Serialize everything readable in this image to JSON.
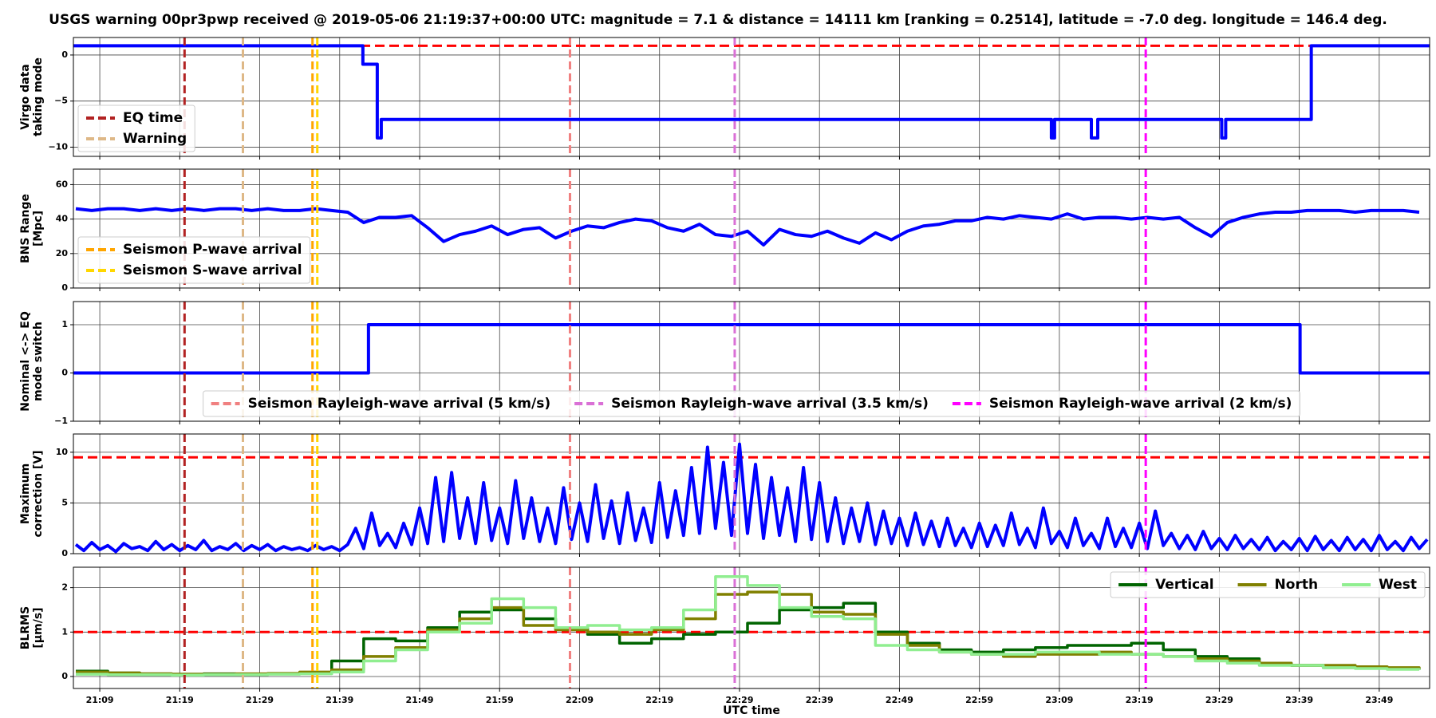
{
  "title": "USGS warning 00pr3pwp received @ 2019-05-06 21:19:37+00:00 UTC: magnitude = 7.1 & distance = 14111 km [ranking = 0.2514], latitude = -7.0 deg. longitude = 146.4 deg.",
  "xlabel": "UTC time",
  "xlim": [
    5.7,
    175.3
  ],
  "xticks": [
    {
      "value": 9,
      "label": "21:09"
    },
    {
      "value": 19,
      "label": "21:19"
    },
    {
      "value": 29,
      "label": "21:29"
    },
    {
      "value": 39,
      "label": "21:39"
    },
    {
      "value": 49,
      "label": "21:49"
    },
    {
      "value": 59,
      "label": "21:59"
    },
    {
      "value": 69,
      "label": "22:09"
    },
    {
      "value": 79,
      "label": "22:19"
    },
    {
      "value": 89,
      "label": "22:29"
    },
    {
      "value": 99,
      "label": "22:39"
    },
    {
      "value": 109,
      "label": "22:49"
    },
    {
      "value": 119,
      "label": "22:59"
    },
    {
      "value": 129,
      "label": "23:09"
    },
    {
      "value": 139,
      "label": "23:19"
    },
    {
      "value": 149,
      "label": "23:29"
    },
    {
      "value": 159,
      "label": "23:39"
    },
    {
      "value": 169,
      "label": "23:49"
    }
  ],
  "events": [
    {
      "name": "EQ time",
      "color": "#b22222",
      "x": 19.6
    },
    {
      "name": "Warning",
      "color": "#deb887",
      "x": 26.9
    },
    {
      "name": "Seismon P-wave arrival",
      "color": "#ffa500",
      "x": 35.6
    },
    {
      "name": "Seismon S-wave arrival",
      "color": "#ffd700",
      "x": 36.2
    },
    {
      "name": "Seismon Rayleigh-wave arrival (5 km/s)",
      "color": "#f08080",
      "x": 67.8
    },
    {
      "name": "Seismon Rayleigh-wave arrival (3.5 km/s)",
      "color": "#da70d6",
      "x": 88.4
    },
    {
      "name": "Seismon Rayleigh-wave arrival (2 km/s)",
      "color": "#ff00ff",
      "x": 139.8
    }
  ],
  "chart_data": [
    {
      "type": "line",
      "ylabel": [
        "Virgo data",
        "taking mode"
      ],
      "ylim": [
        -11,
        1.9
      ],
      "yticks": [
        {
          "value": -10,
          "label": "−10"
        },
        {
          "value": -5,
          "label": "−5"
        },
        0
      ],
      "grid": true,
      "legend": "lower left",
      "threshold": {
        "value": 1,
        "color": "#ff0000"
      },
      "x": [
        5.7,
        41.9,
        41.9,
        43.7,
        43.7,
        44.2,
        44.2,
        128,
        128,
        128.4,
        128.4,
        133,
        133,
        133.8,
        133.8,
        149.3,
        149.3,
        149.8,
        149.8,
        160.5,
        160.5,
        175.3
      ],
      "series": [
        {
          "color": "#0000ff",
          "values": [
            1,
            1,
            -1,
            -1,
            -9,
            -9,
            -7,
            -7,
            -9,
            -9,
            -7,
            -7,
            -9,
            -9,
            -7,
            -7,
            -9,
            -9,
            -7,
            -7,
            1,
            1
          ]
        }
      ]
    },
    {
      "type": "line",
      "ylabel": [
        "BNS Range",
        "[Mpc]"
      ],
      "ylim": [
        0,
        69
      ],
      "yticks": [
        0,
        20,
        40,
        60
      ],
      "grid": true,
      "legend": "lower left",
      "x": [
        6,
        8,
        10,
        12,
        14,
        16,
        18,
        20,
        22,
        24,
        26,
        28,
        30,
        32,
        34,
        36,
        38,
        40,
        42,
        44,
        46,
        48,
        50,
        52,
        54,
        56,
        58,
        60,
        62,
        64,
        66,
        68,
        70,
        72,
        74,
        76,
        78,
        80,
        82,
        84,
        86,
        88,
        90,
        92,
        94,
        96,
        98,
        100,
        102,
        104,
        106,
        108,
        110,
        112,
        114,
        116,
        118,
        120,
        122,
        124,
        126,
        128,
        130,
        132,
        134,
        136,
        138,
        140,
        142,
        144,
        146,
        148,
        150,
        152,
        154,
        156,
        158,
        160,
        162,
        164,
        166,
        168,
        170,
        172,
        174
      ],
      "series": [
        {
          "color": "#0000ff",
          "values": [
            46,
            45,
            46,
            46,
            45,
            46,
            45,
            46,
            45,
            46,
            46,
            45,
            46,
            45,
            45,
            46,
            45,
            44,
            38,
            41,
            41,
            42,
            35,
            27,
            31,
            33,
            36,
            31,
            34,
            35,
            29,
            33,
            36,
            35,
            38,
            40,
            39,
            35,
            33,
            37,
            31,
            30,
            33,
            25,
            34,
            31,
            30,
            33,
            29,
            26,
            32,
            28,
            33,
            36,
            37,
            39,
            39,
            41,
            40,
            42,
            41,
            40,
            43,
            40,
            41,
            41,
            40,
            41,
            40,
            41,
            35,
            30,
            38,
            41,
            43,
            44,
            44,
            45,
            45,
            45,
            44,
            45,
            45,
            45,
            44
          ]
        }
      ]
    },
    {
      "type": "line",
      "ylabel": [
        "Nominal <-> EQ",
        "mode switch"
      ],
      "ylim": [
        -1,
        1.48
      ],
      "yticks": [
        {
          "value": -1,
          "label": "−1"
        },
        0,
        1
      ],
      "grid": true,
      "legend": "lower center",
      "x": [
        5.7,
        42.6,
        42.6,
        159.1,
        159.1,
        175.3
      ],
      "series": [
        {
          "color": "#0000ff",
          "values": [
            0,
            0,
            1,
            1,
            0,
            0
          ]
        }
      ]
    },
    {
      "type": "line",
      "ylabel": [
        "Maximum",
        "correction [V]"
      ],
      "ylim": [
        0,
        11.8
      ],
      "yticks": [
        0,
        5,
        10
      ],
      "grid": true,
      "threshold": {
        "value": 9.5,
        "color": "#ff0000"
      },
      "x": [
        6,
        7,
        8,
        9,
        10,
        11,
        12,
        13,
        14,
        15,
        16,
        17,
        18,
        19,
        20,
        21,
        22,
        23,
        24,
        25,
        26,
        27,
        28,
        29,
        30,
        31,
        32,
        33,
        34,
        35,
        36,
        37,
        38,
        39,
        40,
        41,
        42,
        43,
        44,
        45,
        46,
        47,
        48,
        49,
        50,
        51,
        52,
        53,
        54,
        55,
        56,
        57,
        58,
        59,
        60,
        61,
        62,
        63,
        64,
        65,
        66,
        67,
        68,
        69,
        70,
        71,
        72,
        73,
        74,
        75,
        76,
        77,
        78,
        79,
        80,
        81,
        82,
        83,
        84,
        85,
        86,
        87,
        88,
        89,
        90,
        91,
        92,
        93,
        94,
        95,
        96,
        97,
        98,
        99,
        100,
        101,
        102,
        103,
        104,
        105,
        106,
        107,
        108,
        109,
        110,
        111,
        112,
        113,
        114,
        115,
        116,
        117,
        118,
        119,
        120,
        121,
        122,
        123,
        124,
        125,
        126,
        127,
        128,
        129,
        130,
        131,
        132,
        133,
        134,
        135,
        136,
        137,
        138,
        139,
        140,
        141,
        142,
        143,
        144,
        145,
        146,
        147,
        148,
        149,
        150,
        151,
        152,
        153,
        154,
        155,
        156,
        157,
        158,
        159,
        160,
        161,
        162,
        163,
        164,
        165,
        166,
        167,
        168,
        169,
        170,
        171,
        172,
        173,
        174,
        175
      ],
      "series": [
        {
          "color": "#0000ff",
          "values": [
            0.9,
            0.3,
            1.1,
            0.4,
            0.8,
            0.2,
            1.0,
            0.5,
            0.7,
            0.3,
            1.2,
            0.4,
            0.9,
            0.3,
            0.8,
            0.4,
            1.3,
            0.3,
            0.7,
            0.4,
            1.0,
            0.3,
            0.8,
            0.4,
            0.9,
            0.3,
            0.7,
            0.4,
            0.6,
            0.3,
            0.8,
            0.4,
            0.7,
            0.3,
            0.9,
            2.5,
            0.5,
            4.0,
            0.8,
            2.0,
            0.6,
            3.0,
            0.9,
            4.5,
            1.0,
            7.5,
            1.2,
            8.0,
            1.5,
            5.5,
            1.0,
            7.0,
            1.3,
            4.5,
            1.0,
            7.2,
            1.5,
            5.5,
            1.2,
            4.5,
            1.0,
            6.5,
            1.4,
            5.0,
            1.2,
            6.8,
            1.5,
            5.2,
            1.0,
            6.0,
            1.3,
            4.5,
            1.1,
            7.0,
            1.6,
            6.2,
            1.8,
            8.5,
            2.0,
            10.5,
            2.5,
            9.0,
            1.8,
            10.8,
            2.0,
            8.8,
            1.5,
            7.5,
            1.8,
            6.5,
            1.2,
            8.5,
            1.4,
            7.0,
            1.2,
            5.5,
            1.0,
            4.5,
            1.2,
            5.0,
            0.9,
            4.2,
            1.0,
            3.5,
            0.8,
            4.0,
            0.9,
            3.2,
            0.7,
            3.5,
            0.8,
            2.5,
            0.6,
            3.0,
            0.7,
            2.8,
            0.8,
            4.0,
            0.9,
            2.5,
            0.6,
            4.5,
            1.0,
            2.2,
            0.6,
            3.5,
            0.8,
            2.0,
            0.5,
            3.5,
            0.7,
            2.5,
            0.6,
            3.0,
            0.5,
            4.2,
            0.8,
            2.0,
            0.5,
            1.8,
            0.4,
            2.2,
            0.5,
            1.5,
            0.4,
            1.8,
            0.5,
            1.4,
            0.4,
            1.6,
            0.3,
            1.2,
            0.4,
            1.5,
            0.3,
            1.7,
            0.4,
            1.3,
            0.3,
            1.6,
            0.4,
            1.4,
            0.3,
            1.8,
            0.4,
            1.2,
            0.3,
            1.6,
            0.5,
            1.4
          ]
        }
      ]
    },
    {
      "type": "line",
      "ylabel": [
        "BLRMS",
        "[μm/s]"
      ],
      "ylim": [
        -0.27,
        2.46
      ],
      "yticks": [
        0,
        1,
        2
      ],
      "grid": true,
      "legend": "upper right",
      "step": true,
      "threshold": {
        "value": 1,
        "color": "#ff0000"
      },
      "x": [
        6,
        10,
        14,
        18,
        22,
        26,
        30,
        34,
        38,
        42,
        46,
        50,
        54,
        58,
        62,
        66,
        70,
        74,
        78,
        82,
        86,
        90,
        94,
        98,
        102,
        106,
        110,
        114,
        118,
        122,
        126,
        130,
        134,
        138,
        142,
        146,
        150,
        154,
        158,
        162,
        166,
        170,
        174
      ],
      "series": [
        {
          "name": "Vertical",
          "color": "#006400",
          "values": [
            0.12,
            0.08,
            0.06,
            0.05,
            0.06,
            0.05,
            0.06,
            0.08,
            0.35,
            0.85,
            0.8,
            1.1,
            1.45,
            1.5,
            1.3,
            1.1,
            0.95,
            0.75,
            0.85,
            0.95,
            1.0,
            1.2,
            1.5,
            1.55,
            1.65,
            1.0,
            0.75,
            0.6,
            0.55,
            0.6,
            0.65,
            0.7,
            0.7,
            0.75,
            0.6,
            0.45,
            0.4,
            0.3,
            0.25,
            0.2,
            0.2,
            0.18,
            0.15
          ]
        },
        {
          "name": "North",
          "color": "#808000",
          "values": [
            0.1,
            0.08,
            0.06,
            0.05,
            0.05,
            0.06,
            0.07,
            0.1,
            0.15,
            0.45,
            0.65,
            1.05,
            1.3,
            1.55,
            1.15,
            1.05,
            1.0,
            0.95,
            1.05,
            1.3,
            1.85,
            1.9,
            1.85,
            1.45,
            1.4,
            0.95,
            0.7,
            0.55,
            0.5,
            0.45,
            0.5,
            0.5,
            0.55,
            0.5,
            0.45,
            0.4,
            0.35,
            0.3,
            0.25,
            0.25,
            0.22,
            0.2,
            0.18
          ]
        },
        {
          "name": "West",
          "color": "#90ee90",
          "values": [
            0.05,
            0.04,
            0.04,
            0.03,
            0.04,
            0.04,
            0.05,
            0.06,
            0.1,
            0.35,
            0.6,
            1.0,
            1.2,
            1.75,
            1.55,
            1.1,
            1.15,
            1.05,
            1.1,
            1.5,
            2.25,
            2.05,
            1.55,
            1.35,
            1.3,
            0.7,
            0.6,
            0.55,
            0.5,
            0.5,
            0.55,
            0.55,
            0.5,
            0.5,
            0.45,
            0.35,
            0.3,
            0.25,
            0.25,
            0.2,
            0.18,
            0.16,
            0.15
          ]
        }
      ]
    }
  ]
}
